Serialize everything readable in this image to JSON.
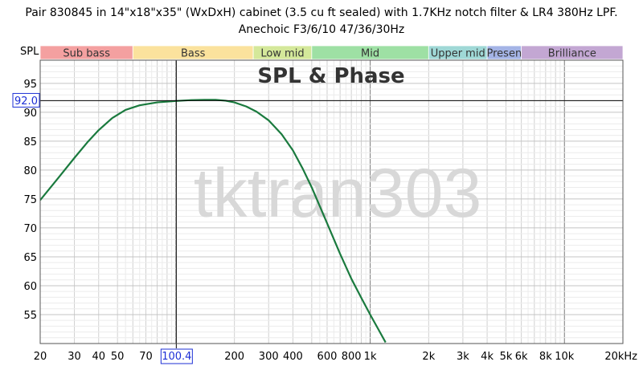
{
  "title_line1": "Pair 830845 in 14\"x18\"x35\" (WxDxH) cabinet (3.5 cu ft sealed) with 1.7KHz notch filter & LR4 380Hz LPF.",
  "title_line2": "Anechoic F3/6/10 47/36/30Hz",
  "watermark": "tktran303",
  "chart_data": {
    "type": "line",
    "title": "SPL & Phase",
    "ylabel": "SPL",
    "xscale": "log",
    "xlim": [
      20,
      20000
    ],
    "ylim": [
      50,
      99
    ],
    "x_ticks": [
      {
        "value": 20,
        "label": "20"
      },
      {
        "value": 30,
        "label": "30"
      },
      {
        "value": 40,
        "label": "40"
      },
      {
        "value": 50,
        "label": "50"
      },
      {
        "value": 70,
        "label": "70"
      },
      {
        "value": 200,
        "label": "200"
      },
      {
        "value": 300,
        "label": "300"
      },
      {
        "value": 400,
        "label": "400"
      },
      {
        "value": 600,
        "label": "600"
      },
      {
        "value": 800,
        "label": "800"
      },
      {
        "value": 1000,
        "label": "1k"
      },
      {
        "value": 2000,
        "label": "2k"
      },
      {
        "value": 3000,
        "label": "3k"
      },
      {
        "value": 4000,
        "label": "4k"
      },
      {
        "value": 5000,
        "label": "5k"
      },
      {
        "value": 6000,
        "label": "6k"
      },
      {
        "value": 8000,
        "label": "8k"
      },
      {
        "value": 10000,
        "label": "10k"
      },
      {
        "value": 20000,
        "label": "20kHz"
      }
    ],
    "y_ticks": [
      55,
      60,
      65,
      70,
      75,
      80,
      85,
      90,
      95
    ],
    "cursor": {
      "x": 100.4,
      "x_label": "100.4",
      "y": 92.0,
      "y_label": "92.0"
    },
    "bands": [
      {
        "name": "Sub bass",
        "from": 20,
        "to": 60,
        "color": "#f4a0a0"
      },
      {
        "name": "Bass",
        "from": 60,
        "to": 250,
        "color": "#fbe29d"
      },
      {
        "name": "Low mid",
        "from": 250,
        "to": 500,
        "color": "#d4e89a"
      },
      {
        "name": "Mid",
        "from": 500,
        "to": 2000,
        "color": "#9ee0a4"
      },
      {
        "name": "Upper mid",
        "from": 2000,
        "to": 4000,
        "color": "#9fd8d6"
      },
      {
        "name": "Presen",
        "from": 4000,
        "to": 6000,
        "color": "#a4b4e6"
      },
      {
        "name": "Brilliance",
        "from": 6000,
        "to": 20000,
        "color": "#c3a7d3"
      }
    ],
    "series": [
      {
        "color": "#1a7a3e",
        "x": [
          20,
          25,
          30,
          35,
          40,
          47,
          55,
          65,
          80,
          100,
          120,
          140,
          160,
          180,
          200,
          230,
          260,
          300,
          350,
          400,
          450,
          500,
          600,
          700,
          800,
          900,
          1000,
          1100,
          1200
        ],
        "y": [
          74.8,
          78.8,
          82.1,
          84.8,
          86.9,
          89.0,
          90.4,
          91.2,
          91.7,
          91.95,
          92.1,
          92.15,
          92.15,
          92.0,
          91.7,
          91.0,
          90.1,
          88.6,
          86.2,
          83.4,
          80.2,
          77.0,
          70.8,
          65.5,
          61.2,
          57.9,
          55.0,
          52.5,
          50.2
        ]
      }
    ]
  }
}
